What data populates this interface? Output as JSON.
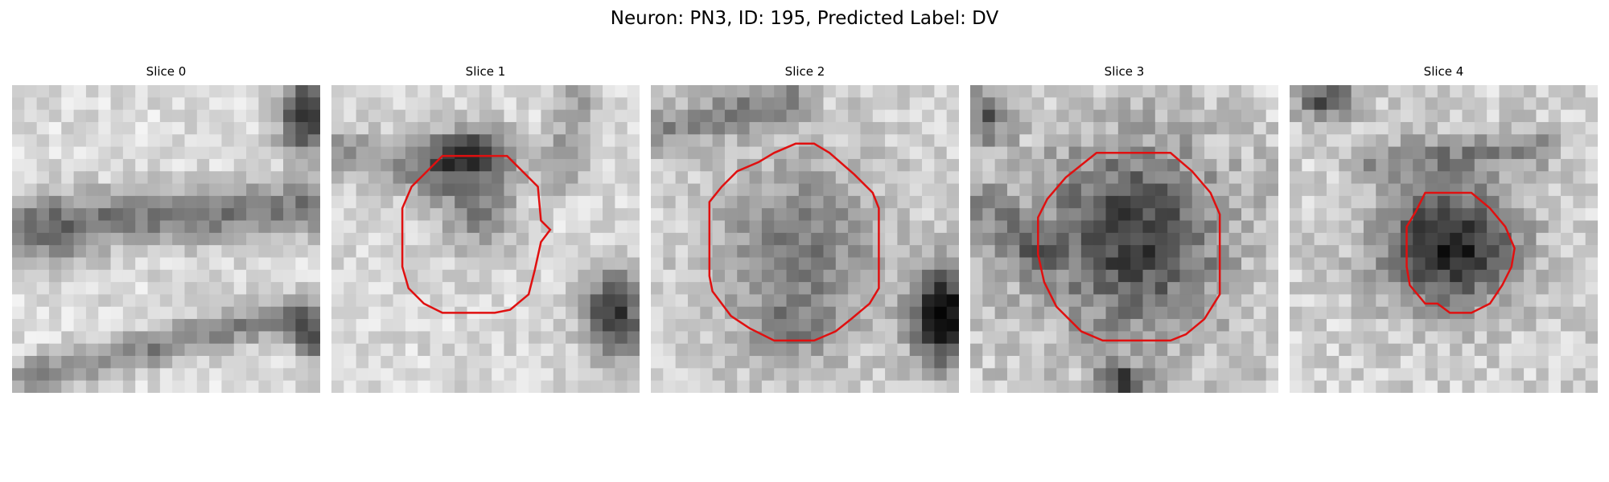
{
  "figure": {
    "title": "Neuron: PN3, ID: 195, Predicted Label: DV"
  },
  "panels": [
    {
      "title": "Slice 0",
      "has_outline": false,
      "outline_color": "#e01010"
    },
    {
      "title": "Slice 1",
      "has_outline": true,
      "outline_color": "#e01010"
    },
    {
      "title": "Slice 2",
      "has_outline": true,
      "outline_color": "#e01010"
    },
    {
      "title": "Slice 3",
      "has_outline": true,
      "outline_color": "#e01010"
    },
    {
      "title": "Slice 4",
      "has_outline": true,
      "outline_color": "#e01010"
    }
  ],
  "colormap": "gray"
}
